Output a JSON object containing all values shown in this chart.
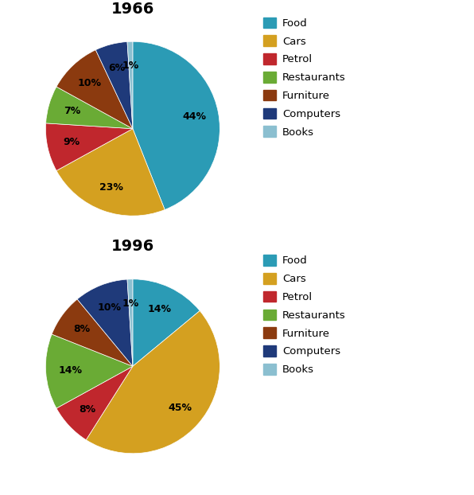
{
  "chart1": {
    "title": "1966",
    "labels": [
      "Food",
      "Cars",
      "Petrol",
      "Restaurants",
      "Furniture",
      "Computers",
      "Books"
    ],
    "values": [
      44,
      23,
      9,
      7,
      10,
      6,
      1
    ],
    "colors": [
      "#2B9BB5",
      "#D4A020",
      "#C0272D",
      "#6AAB35",
      "#8B3A0F",
      "#1F3A7A",
      "#8BBFD0"
    ],
    "startangle": 90
  },
  "chart2": {
    "title": "1996",
    "labels": [
      "Food",
      "Cars",
      "Petrol",
      "Restaurants",
      "Furniture",
      "Computers",
      "Books"
    ],
    "values": [
      14,
      45,
      8,
      14,
      8,
      10,
      1
    ],
    "colors": [
      "#2B9BB5",
      "#D4A020",
      "#C0272D",
      "#6AAB35",
      "#8B3A0F",
      "#1F3A7A",
      "#8BBFD0"
    ],
    "startangle": 90
  },
  "legend_labels": [
    "Food",
    "Cars",
    "Petrol",
    "Restaurants",
    "Furniture",
    "Computers",
    "Books"
  ],
  "legend_colors": [
    "#2B9BB5",
    "#D4A020",
    "#C0272D",
    "#6AAB35",
    "#8B3A0F",
    "#1F3A7A",
    "#8BBFD0"
  ],
  "bg_color": "#FFFFFF",
  "pct_distance": 0.72,
  "label_fontsize": 9,
  "title_fontsize": 14
}
